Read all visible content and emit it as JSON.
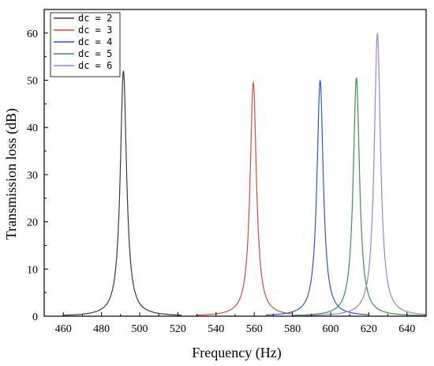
{
  "chart_data": {
    "type": "line",
    "xlabel": "Frequency (Hz)",
    "ylabel": "Transmission loss (dB)",
    "xlim": [
      450,
      650
    ],
    "ylim": [
      0,
      65
    ],
    "x_ticks": [
      460,
      480,
      500,
      520,
      540,
      560,
      580,
      600,
      620,
      640
    ],
    "y_ticks": [
      0,
      10,
      20,
      30,
      40,
      50,
      60
    ],
    "grid": false,
    "legend_position": "top-left",
    "series": [
      {
        "name": "dc = 2",
        "color": "#3a3a3a",
        "range": [
          460,
          522
        ],
        "peak": {
          "x": 491.5,
          "y": 52
        },
        "width": 2.0,
        "points": [
          [
            460,
            0.6
          ],
          [
            470,
            1.3
          ],
          [
            480,
            3.5
          ],
          [
            486,
            7.6
          ],
          [
            489,
            15
          ],
          [
            490.5,
            27
          ],
          [
            491.5,
            52
          ],
          [
            492.5,
            27
          ],
          [
            494,
            15
          ],
          [
            497,
            7.6
          ],
          [
            503,
            3.5
          ],
          [
            513,
            1.3
          ],
          [
            522,
            0.6
          ]
        ]
      },
      {
        "name": "dc = 3",
        "color": "#c9503e",
        "range": [
          530,
          580
        ],
        "peak": {
          "x": 559.5,
          "y": 49.5
        },
        "width": 2.0,
        "points": [
          [
            530,
            0.9
          ],
          [
            540,
            2.3
          ],
          [
            550,
            6
          ],
          [
            555,
            11.5
          ],
          [
            558,
            26
          ],
          [
            559.5,
            49.5
          ],
          [
            561,
            26
          ],
          [
            564,
            11.5
          ],
          [
            569,
            6
          ],
          [
            579,
            2.3
          ],
          [
            580,
            2.0
          ]
        ]
      },
      {
        "name": "dc = 4",
        "color": "#2f55c8",
        "range": [
          566,
          620
        ],
        "peak": {
          "x": 594.5,
          "y": 50
        },
        "width": 2.0,
        "points": [
          [
            566,
            0.8
          ],
          [
            575,
            1.9
          ],
          [
            585,
            5.2
          ],
          [
            590,
            10.5
          ],
          [
            593,
            25
          ],
          [
            594.5,
            50
          ],
          [
            596,
            25
          ],
          [
            599,
            10.5
          ],
          [
            604,
            5.2
          ],
          [
            614,
            1.9
          ],
          [
            620,
            1.1
          ]
        ]
      },
      {
        "name": "dc = 5",
        "color": "#3e8f4a",
        "range": [
          580,
          650
        ],
        "peak": {
          "x": 613.5,
          "y": 50.5
        },
        "width": 2.0,
        "points": [
          [
            580,
            0.6
          ],
          [
            590,
            1.5
          ],
          [
            600,
            3.9
          ],
          [
            605,
            7.4
          ],
          [
            609,
            15
          ],
          [
            612,
            32
          ],
          [
            613.5,
            50.5
          ],
          [
            615,
            32
          ],
          [
            618,
            15
          ],
          [
            622,
            7.4
          ],
          [
            627,
            3.9
          ],
          [
            637,
            1.5
          ],
          [
            650,
            0.7
          ]
        ]
      },
      {
        "name": "dc = 6",
        "color": "#9b7fd8",
        "range": [
          585,
          650
        ],
        "peak": {
          "x": 624.5,
          "y": 60
        },
        "width": 2.0,
        "points": [
          [
            585,
            0.5
          ],
          [
            595,
            1.0
          ],
          [
            605,
            2.5
          ],
          [
            612,
            5
          ],
          [
            618,
            10.5
          ],
          [
            622,
            25
          ],
          [
            624.5,
            60
          ],
          [
            627,
            25
          ],
          [
            631,
            10.5
          ],
          [
            637,
            5
          ],
          [
            644,
            2.5
          ],
          [
            650,
            1.5
          ]
        ]
      }
    ]
  }
}
